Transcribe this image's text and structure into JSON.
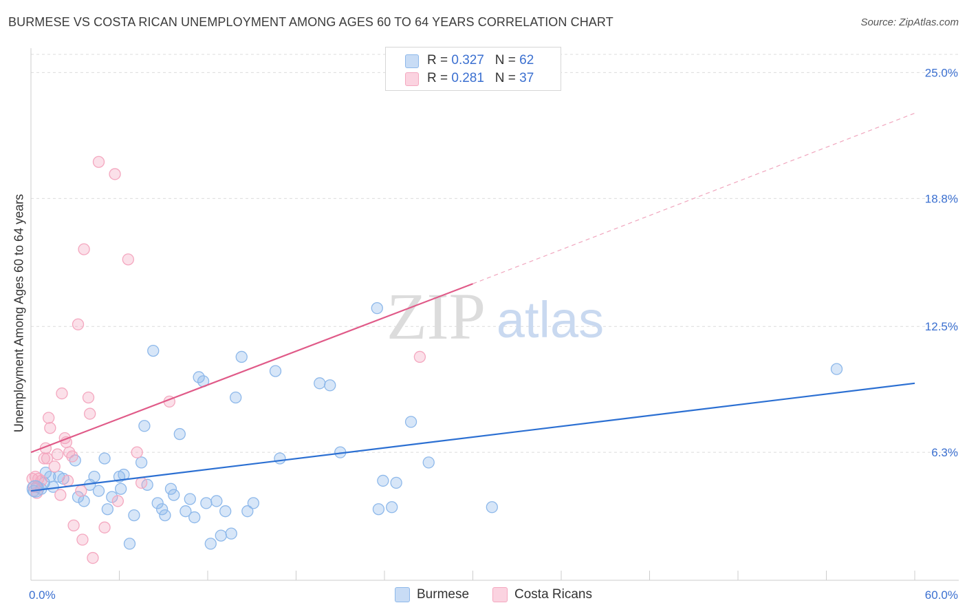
{
  "title": "BURMESE VS COSTA RICAN UNEMPLOYMENT AMONG AGES 60 TO 64 YEARS CORRELATION CHART",
  "source": "Source: ZipAtlas.com",
  "watermark": {
    "zip": "ZIP",
    "atlas": "atlas"
  },
  "legend": {
    "rows": [
      {
        "r_label": "R = ",
        "r_value": "0.327",
        "n_label": "N = ",
        "n_value": "62",
        "color": "#8db8ea"
      },
      {
        "r_label": "R = ",
        "r_value": "0.281",
        "n_label": "N = ",
        "n_value": "37",
        "color": "#f4a7bf"
      }
    ]
  },
  "bottom_legend": [
    {
      "label": "Burmese",
      "color": "#8db8ea"
    },
    {
      "label": "Costa Ricans",
      "color": "#f4a7bf"
    }
  ],
  "chart_data": {
    "type": "scatter",
    "xlabel": "",
    "ylabel": "Unemployment Among Ages 60 to 64 years",
    "xlim": [
      0,
      60
    ],
    "ylim": [
      0,
      26.2
    ],
    "x_tick_labels": [
      "0.0%",
      "60.0%"
    ],
    "y_ticks": [
      6.3,
      12.5,
      18.8,
      25.0
    ],
    "y_tick_labels": [
      "6.3%",
      "12.5%",
      "18.8%",
      "25.0%"
    ],
    "grid": "horizontal dashed",
    "legend_placement": "top-center",
    "series": [
      {
        "name": "Burmese",
        "color": "#8db8ea",
        "line_color": "#2b6fd2",
        "trend": {
          "x0": 0,
          "y0": 4.4,
          "x1": 60,
          "y1": 9.7,
          "dashed_after": null
        },
        "points": [
          [
            0.2,
            4.4
          ],
          [
            0.4,
            4.6
          ],
          [
            0.7,
            4.5
          ],
          [
            0.9,
            4.8
          ],
          [
            1.0,
            5.3
          ],
          [
            1.3,
            5.1
          ],
          [
            1.5,
            4.6
          ],
          [
            1.9,
            5.1
          ],
          [
            2.2,
            5.0
          ],
          [
            3.0,
            5.9
          ],
          [
            3.2,
            4.1
          ],
          [
            3.6,
            3.9
          ],
          [
            4.0,
            4.7
          ],
          [
            4.3,
            5.1
          ],
          [
            4.6,
            4.4
          ],
          [
            5.0,
            6.0
          ],
          [
            5.2,
            3.5
          ],
          [
            5.5,
            4.1
          ],
          [
            6.0,
            5.1
          ],
          [
            6.1,
            4.5
          ],
          [
            6.3,
            5.2
          ],
          [
            6.7,
            1.8
          ],
          [
            7.0,
            3.2
          ],
          [
            7.5,
            5.8
          ],
          [
            7.7,
            7.6
          ],
          [
            7.9,
            4.7
          ],
          [
            8.3,
            11.3
          ],
          [
            8.6,
            3.8
          ],
          [
            8.9,
            3.5
          ],
          [
            9.1,
            3.2
          ],
          [
            9.5,
            4.5
          ],
          [
            9.7,
            4.2
          ],
          [
            10.1,
            7.2
          ],
          [
            10.5,
            3.4
          ],
          [
            10.8,
            4.0
          ],
          [
            11.1,
            3.1
          ],
          [
            11.4,
            10.0
          ],
          [
            11.7,
            9.8
          ],
          [
            11.9,
            3.8
          ],
          [
            12.2,
            1.8
          ],
          [
            12.6,
            3.9
          ],
          [
            12.9,
            2.2
          ],
          [
            13.2,
            3.4
          ],
          [
            13.6,
            2.3
          ],
          [
            13.9,
            9.0
          ],
          [
            14.3,
            11.0
          ],
          [
            14.7,
            3.4
          ],
          [
            15.1,
            3.8
          ],
          [
            16.6,
            10.3
          ],
          [
            16.9,
            6.0
          ],
          [
            19.6,
            9.7
          ],
          [
            20.3,
            9.6
          ],
          [
            21.0,
            6.3
          ],
          [
            23.5,
            13.4
          ],
          [
            23.6,
            3.5
          ],
          [
            23.9,
            4.9
          ],
          [
            24.5,
            3.6
          ],
          [
            24.8,
            4.8
          ],
          [
            25.8,
            7.8
          ],
          [
            27.0,
            5.8
          ],
          [
            31.3,
            3.6
          ],
          [
            54.7,
            10.4
          ]
        ]
      },
      {
        "name": "Costa Ricans",
        "color": "#f4a7bf",
        "line_color": "#e05a88",
        "trend": {
          "x0": 0,
          "y0": 6.3,
          "x1": 30,
          "y1": 14.6,
          "dashed_to": {
            "x": 60,
            "y": 23.0
          }
        },
        "points": [
          [
            0.1,
            5.0
          ],
          [
            0.2,
            4.6
          ],
          [
            0.3,
            5.1
          ],
          [
            0.4,
            4.3
          ],
          [
            0.5,
            5.0
          ],
          [
            0.7,
            4.9
          ],
          [
            0.9,
            6.0
          ],
          [
            1.0,
            6.5
          ],
          [
            1.1,
            6.0
          ],
          [
            1.2,
            8.0
          ],
          [
            1.3,
            7.5
          ],
          [
            1.6,
            5.6
          ],
          [
            1.8,
            6.2
          ],
          [
            2.0,
            4.2
          ],
          [
            2.1,
            9.2
          ],
          [
            2.3,
            7.0
          ],
          [
            2.4,
            6.8
          ],
          [
            2.5,
            4.9
          ],
          [
            2.6,
            6.3
          ],
          [
            2.8,
            6.1
          ],
          [
            2.9,
            2.7
          ],
          [
            3.2,
            12.6
          ],
          [
            3.4,
            4.4
          ],
          [
            3.5,
            2.0
          ],
          [
            3.6,
            16.3
          ],
          [
            3.9,
            9.0
          ],
          [
            4.0,
            8.2
          ],
          [
            4.2,
            1.1
          ],
          [
            4.6,
            20.6
          ],
          [
            5.0,
            2.6
          ],
          [
            5.7,
            20.0
          ],
          [
            5.9,
            3.9
          ],
          [
            6.6,
            15.8
          ],
          [
            7.2,
            6.3
          ],
          [
            7.5,
            4.8
          ],
          [
            9.4,
            8.8
          ],
          [
            26.4,
            11.0
          ]
        ]
      }
    ]
  }
}
